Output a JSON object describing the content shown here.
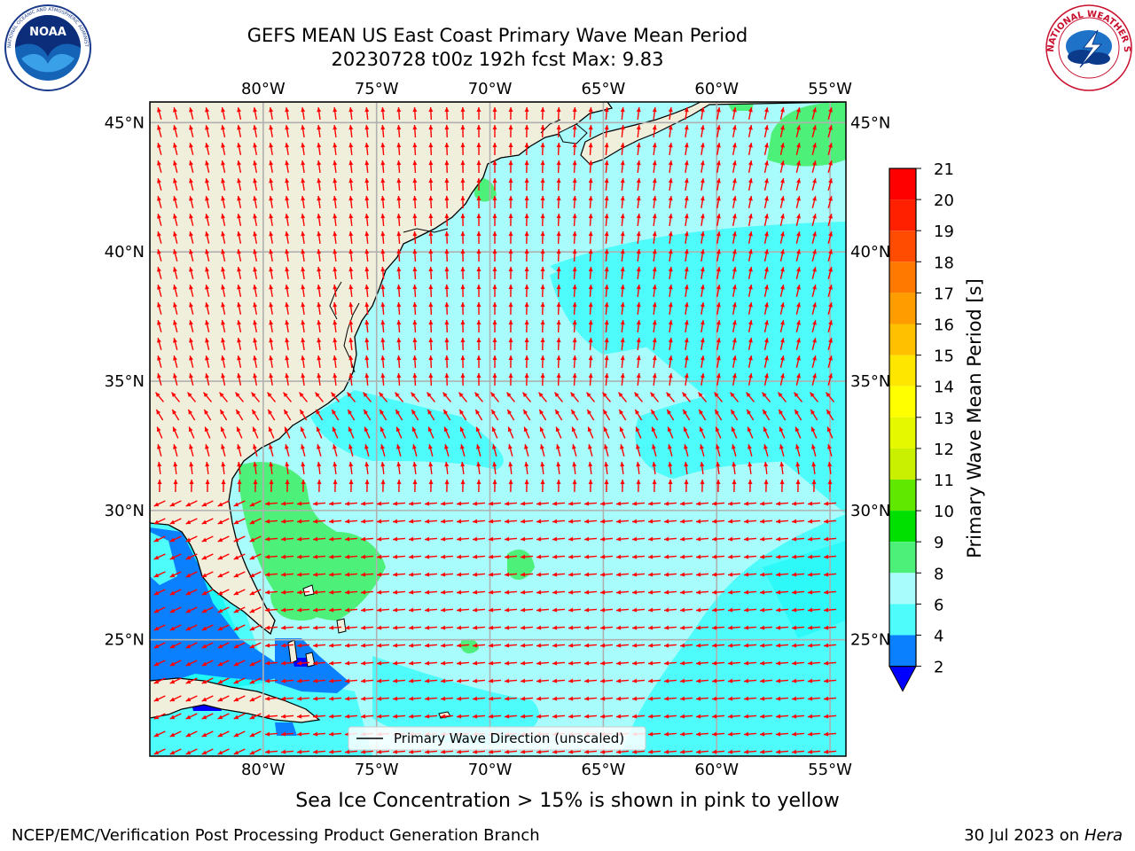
{
  "header": {
    "title_line1": "GEFS MEAN US East Coast Primary Wave Mean Period",
    "title_line2": "20230728 t00z 192h fcst   Max: 9.83"
  },
  "logos": {
    "left": {
      "icon": "noaa-logo-icon",
      "text": "NOAA",
      "ring_text": "NATIONAL OCEANIC AND ATMOSPHERIC ADMINISTRATION · U.S. DEPARTMENT OF COMMERCE"
    },
    "right": {
      "icon": "nws-logo-icon",
      "ring_text": "NATIONAL WEATHER SERVICE"
    }
  },
  "map": {
    "lon_labels": [
      "80°W",
      "75°W",
      "70°W",
      "65°W",
      "60°W",
      "55°W"
    ],
    "lon_values": [
      -80,
      -75,
      -70,
      -65,
      -60,
      -55
    ],
    "lat_labels": [
      "45°N",
      "40°N",
      "35°N",
      "30°N",
      "25°N"
    ],
    "lat_values": [
      45,
      40,
      35,
      30,
      25
    ],
    "lon_range": [
      -85,
      -54.3
    ],
    "lat_range": [
      20.5,
      45.8
    ],
    "legend_label": "Primary Wave Direction (unscaled)",
    "colors": {
      "land": "#efefdc",
      "ocean_8_9": "#a9fcfc",
      "ocean_6_8": "#4efcfc",
      "ocean_4_6": "#00f4f4",
      "ocean_2_4": "#0a80ff",
      "green_9_10": "#4df17a",
      "arrow": "#ff0000",
      "grid": "#b0b0b0"
    }
  },
  "colorbar": {
    "label": "Primary Wave Mean Period [s]",
    "ticks": [
      "21",
      "20",
      "19",
      "18",
      "17",
      "16",
      "15",
      "14",
      "13",
      "12",
      "11",
      "10",
      "9",
      "8",
      "6",
      "4",
      "2"
    ],
    "colors": [
      "#ff0000",
      "#ff2000",
      "#ff4c00",
      "#ff7800",
      "#ff9c00",
      "#ffc000",
      "#ffe600",
      "#ffff00",
      "#e6f800",
      "#c8f000",
      "#60e800",
      "#00e000",
      "#4df17a",
      "#a9fcfc",
      "#4efcfc",
      "#00f4f4",
      "#0a80ff"
    ],
    "extend_color": "#0000ff"
  },
  "notes": {
    "sea_ice": "Sea Ice Concentration > 15% is shown in pink to yellow"
  },
  "footer": {
    "left": "NCEP/EMC/Verification Post Processing Product Generation Branch",
    "date": "30 Jul 2023 on ",
    "machine": "Hera"
  }
}
